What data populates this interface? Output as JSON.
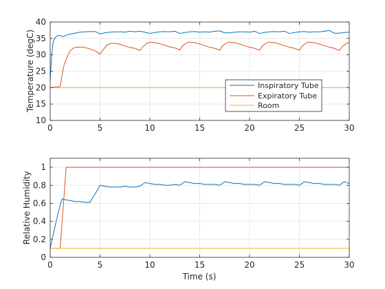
{
  "chart_data": [
    {
      "type": "line",
      "xlabel": "",
      "ylabel": "Temperature (degC)",
      "xlim": [
        0,
        30
      ],
      "ylim": [
        10,
        40
      ],
      "xticks": [
        0,
        5,
        10,
        15,
        20,
        25,
        30
      ],
      "yticks": [
        10,
        15,
        20,
        25,
        30,
        35,
        40
      ],
      "grid": true,
      "legend_position": "bottom-right",
      "series": [
        {
          "name": "Inspiratory Tube",
          "color": "#0072BD",
          "x": [
            0,
            0.15,
            0.3,
            0.5,
            0.7,
            1.0,
            1.3,
            1.6,
            2,
            2.5,
            3,
            3.5,
            4,
            4.5,
            5,
            5.5,
            6,
            6.5,
            7,
            7.5,
            8,
            8.5,
            9,
            9.5,
            10,
            10.5,
            11,
            11.5,
            12,
            12.5,
            13,
            13.5,
            14,
            14.5,
            15,
            15.5,
            16,
            16.5,
            17,
            17.5,
            18,
            18.5,
            19,
            19.5,
            20,
            20.5,
            21,
            21.5,
            22,
            22.5,
            23,
            23.5,
            24,
            24.5,
            25,
            25.5,
            26,
            26.5,
            27,
            27.5,
            28,
            28.5,
            29,
            29.5,
            30
          ],
          "values": [
            22.5,
            30,
            34,
            35.2,
            35.8,
            35.9,
            35.5,
            36.0,
            36.3,
            36.6,
            36.9,
            37.0,
            37.1,
            37.1,
            36.4,
            36.7,
            36.9,
            37.0,
            37.0,
            36.9,
            37.2,
            37.0,
            37.2,
            36.9,
            36.5,
            36.8,
            37.0,
            37.1,
            37.0,
            37.2,
            36.5,
            36.8,
            37.0,
            37.1,
            36.9,
            37.0,
            36.9,
            37.2,
            37.3,
            36.7,
            36.7,
            36.9,
            37.0,
            37.0,
            36.9,
            37.2,
            36.5,
            36.8,
            37.0,
            37.1,
            37.0,
            37.2,
            36.5,
            36.8,
            37.0,
            37.1,
            36.9,
            37.0,
            37.0,
            37.2,
            37.4,
            36.6,
            36.6,
            36.8,
            36.9
          ]
        },
        {
          "name": "Expiratory Tube",
          "color": "#D95319",
          "x": [
            0,
            0.5,
            1.0,
            1.2,
            1.4,
            1.6,
            1.8,
            2.0,
            2.3,
            2.6,
            3.0,
            3.5,
            4.0,
            4.5,
            5.0,
            5.3,
            5.7,
            6.0,
            6.5,
            7.0,
            7.5,
            8.0,
            8.5,
            9.0,
            9.3,
            9.7,
            10.0,
            10.5,
            11.0,
            11.5,
            12.0,
            12.5,
            13.0,
            13.3,
            13.7,
            14.0,
            14.5,
            15.0,
            15.5,
            16.0,
            16.5,
            17.0,
            17.3,
            17.7,
            18.0,
            18.5,
            19.0,
            19.5,
            20.0,
            20.5,
            21.0,
            21.3,
            21.7,
            22.0,
            22.5,
            23.0,
            23.5,
            24.0,
            24.5,
            25.0,
            25.3,
            25.7,
            26.0,
            26.5,
            27.0,
            27.5,
            28.0,
            28.5,
            29.0,
            29.3,
            29.7,
            30.0
          ],
          "values": [
            20.0,
            20.2,
            20.3,
            24,
            27,
            28.5,
            30,
            31.2,
            32.0,
            32.3,
            32.4,
            32.2,
            31.8,
            31.2,
            30.2,
            31.5,
            33.0,
            33.4,
            33.5,
            33.2,
            32.7,
            32.2,
            32.0,
            31.3,
            32.5,
            33.5,
            33.8,
            33.7,
            33.4,
            32.9,
            32.4,
            32.1,
            31.5,
            32.8,
            33.6,
            33.9,
            33.7,
            33.3,
            32.8,
            32.3,
            32.0,
            31.4,
            32.8,
            33.6,
            33.9,
            33.7,
            33.3,
            32.8,
            32.3,
            32.0,
            31.4,
            32.8,
            33.6,
            33.9,
            33.7,
            33.3,
            32.8,
            32.3,
            32.0,
            31.4,
            32.8,
            33.6,
            33.9,
            33.7,
            33.3,
            32.8,
            32.3,
            32.0,
            31.3,
            32.5,
            33.4,
            33.8
          ]
        },
        {
          "name": "Room",
          "color": "#EDB120",
          "x": [
            0,
            30
          ],
          "values": [
            20,
            20
          ]
        }
      ]
    },
    {
      "type": "line",
      "xlabel": "Time (s)",
      "ylabel": "Relative Humidity",
      "xlim": [
        0,
        30
      ],
      "ylim": [
        0,
        1.1
      ],
      "xticks": [
        0,
        5,
        10,
        15,
        20,
        25,
        30
      ],
      "yticks": [
        0,
        0.2,
        0.4,
        0.6,
        0.8,
        1
      ],
      "ytick_labels": [
        "0",
        "0.2",
        "0.4",
        "0.6",
        "0.8",
        "1"
      ],
      "grid": true,
      "series": [
        {
          "color": "#0072BD",
          "x": [
            0,
            0.2,
            0.6,
            1.0,
            1.2,
            1.5,
            2.0,
            2.5,
            3.0,
            3.5,
            4.0,
            4.2,
            4.6,
            5.0,
            5.5,
            6.0,
            6.5,
            7.0,
            7.5,
            8.0,
            8.5,
            9.0,
            9.5,
            10.0,
            10.5,
            11.0,
            11.5,
            12.0,
            12.5,
            13.0,
            13.5,
            14.0,
            14.5,
            15.0,
            15.5,
            16.0,
            16.5,
            17.0,
            17.5,
            18.0,
            18.5,
            19.0,
            19.5,
            20.0,
            20.5,
            21.0,
            21.5,
            22.0,
            22.5,
            23.0,
            23.5,
            24.0,
            24.5,
            25.0,
            25.5,
            26.0,
            26.5,
            27.0,
            27.5,
            28.0,
            28.5,
            29.0,
            29.5,
            30.0
          ],
          "values": [
            0.1,
            0.2,
            0.4,
            0.58,
            0.65,
            0.64,
            0.63,
            0.62,
            0.62,
            0.61,
            0.61,
            0.65,
            0.72,
            0.8,
            0.79,
            0.78,
            0.78,
            0.78,
            0.79,
            0.78,
            0.78,
            0.79,
            0.83,
            0.82,
            0.81,
            0.81,
            0.8,
            0.8,
            0.81,
            0.8,
            0.84,
            0.83,
            0.82,
            0.82,
            0.81,
            0.81,
            0.81,
            0.8,
            0.84,
            0.83,
            0.82,
            0.82,
            0.81,
            0.81,
            0.81,
            0.8,
            0.84,
            0.83,
            0.82,
            0.82,
            0.81,
            0.81,
            0.81,
            0.8,
            0.84,
            0.83,
            0.82,
            0.82,
            0.81,
            0.81,
            0.81,
            0.8,
            0.84,
            0.82
          ]
        },
        {
          "color": "#D95319",
          "x": [
            0,
            1.0,
            1.6,
            30
          ],
          "values": [
            0.1,
            0.1,
            1.0,
            1.0
          ]
        },
        {
          "color": "#EDB120",
          "x": [
            0,
            30
          ],
          "values": [
            0.1,
            0.1
          ]
        }
      ]
    }
  ]
}
